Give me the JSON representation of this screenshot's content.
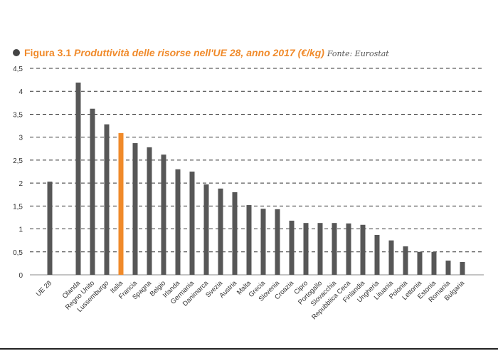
{
  "chart_data": {
    "type": "bar",
    "title_prefix": "Figura 3.1",
    "title": "Produttività delle risorse nell'UE 28, anno 2017 (€/kg)",
    "source": "Fonte: Eurostat",
    "xlabel": "",
    "ylabel": "",
    "ylim": [
      0,
      4.5
    ],
    "yticks": [
      "0",
      "0,5",
      "1",
      "1,5",
      "2",
      "2,5",
      "3",
      "3,5",
      "4",
      "4,5"
    ],
    "grid": true,
    "categories": [
      "UE 28",
      "Olanda",
      "Regno Unito",
      "Lussemburgo",
      "Italia",
      "Francia",
      "Spagna",
      "Belgio",
      "Irlanda",
      "Germania",
      "Danimarca",
      "Svezia",
      "Austria",
      "Malta",
      "Grecia",
      "Slovenia",
      "Croazia",
      "Cipro",
      "Portogallo",
      "Slovacchia",
      "Repubblica Ceca",
      "Finlandia",
      "Ungheria",
      "Lituania",
      "Polonia",
      "Lettonia",
      "Estonia",
      "Romania",
      "Bulgaria"
    ],
    "values": [
      2.03,
      4.19,
      3.62,
      3.28,
      3.09,
      2.87,
      2.78,
      2.62,
      2.3,
      2.25,
      1.97,
      1.88,
      1.8,
      1.52,
      1.44,
      1.43,
      1.18,
      1.13,
      1.13,
      1.13,
      1.12,
      1.09,
      0.87,
      0.75,
      0.62,
      0.5,
      0.5,
      0.31,
      0.28
    ],
    "highlight": "Italia",
    "colors": {
      "bar": "#575757",
      "highlight": "#f08a2a",
      "accent": "#f08a2a"
    }
  }
}
